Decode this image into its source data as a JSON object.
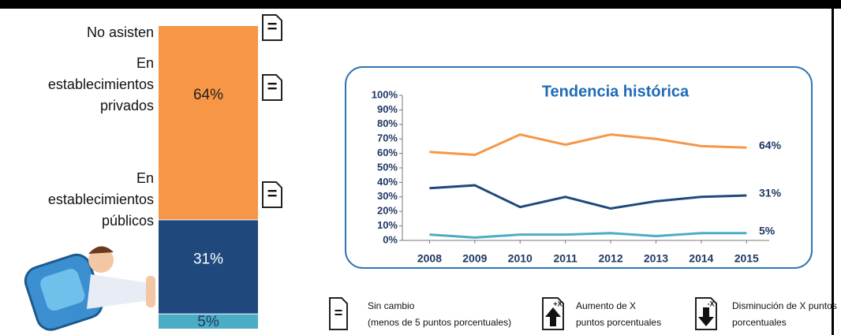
{
  "chart_data": [
    {
      "type": "stacked_column",
      "categories": [
        [
          "No asisten"
        ],
        [
          "En",
          "establecimientos",
          "privados"
        ],
        [
          "En",
          "establecimientos",
          "públicos"
        ]
      ],
      "values": [
        5,
        31,
        64
      ],
      "value_labels": [
        "5%",
        "31%",
        "64%"
      ],
      "colors": [
        "#4bacc6",
        "#1f497d",
        "#f79646"
      ],
      "label_colors": [
        "#1f3864",
        "#ffffff",
        "#1f1f1f"
      ],
      "change_marks": [
        "=",
        "=",
        "="
      ],
      "ylim": [
        0,
        100
      ]
    },
    {
      "type": "line",
      "title": "Tendencia histórica",
      "x": [
        2008,
        2009,
        2010,
        2011,
        2012,
        2013,
        2014,
        2015
      ],
      "xlim": [
        2007.4,
        2015.5
      ],
      "ylim": [
        0,
        100
      ],
      "yticks": [
        {
          "value": 0,
          "label": "0%"
        },
        {
          "value": 10,
          "label": "10%"
        },
        {
          "value": 20,
          "label": "20%"
        },
        {
          "value": 30,
          "label": "30%"
        },
        {
          "value": 40,
          "label": "40%"
        },
        {
          "value": 50,
          "label": "50%"
        },
        {
          "value": 60,
          "label": "60%"
        },
        {
          "value": 70,
          "label": "70%"
        },
        {
          "value": 80,
          "label": "80%"
        },
        {
          "value": 90,
          "label": "90%"
        },
        {
          "value": 100,
          "label": "100%"
        }
      ],
      "series": [
        {
          "name": "En establecimientos públicos",
          "color": "#f79646",
          "values": [
            61,
            59,
            73,
            66,
            73,
            70,
            65,
            64
          ],
          "end_label": "64%"
        },
        {
          "name": "En establecimientos privados",
          "color": "#1f497d",
          "values": [
            36,
            38,
            23,
            30,
            22,
            27,
            30,
            31
          ],
          "end_label": "31%"
        },
        {
          "name": "No asisten",
          "color": "#4bacc6",
          "values": [
            4,
            2,
            4,
            4,
            5,
            3,
            5,
            5
          ],
          "end_label": "5%"
        }
      ]
    }
  ],
  "key": [
    {
      "symbol": "=",
      "lines": [
        "Sin cambio",
        "(menos de 5 puntos porcentuales)"
      ]
    },
    {
      "symbol": "+X",
      "lines": [
        "Aumento de X",
        "puntos porcentuales"
      ]
    },
    {
      "symbol": "-X",
      "lines": [
        "Disminución de X puntos",
        "porcentuales"
      ]
    }
  ]
}
